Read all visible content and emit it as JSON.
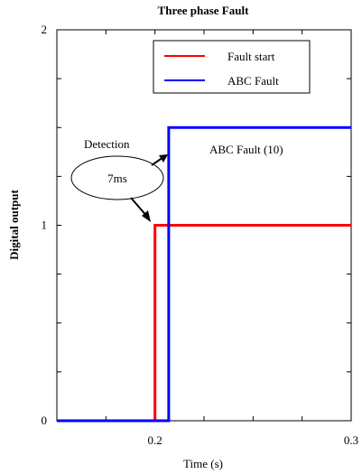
{
  "chart_data": {
    "type": "line",
    "title": "Three phase Fault",
    "xlabel": "Time (s)",
    "ylabel": "Digital output",
    "xlim": [
      0.15,
      0.3
    ],
    "ylim": [
      0,
      2
    ],
    "xticks": [
      0.2,
      0.3
    ],
    "xtick_labels": [
      "0.2",
      "0.3"
    ],
    "yticks": [
      0,
      1,
      2
    ],
    "ytick_labels": [
      "0",
      "1",
      "2"
    ],
    "grid": false,
    "legend_position": "top-right",
    "series": [
      {
        "name": "Fault start",
        "color": "#ff0000",
        "x": [
          0.15,
          0.2,
          0.2,
          0.3
        ],
        "y": [
          0,
          0,
          1,
          1
        ]
      },
      {
        "name": "ABC Fault",
        "color": "#0000ff",
        "x": [
          0.15,
          0.207,
          0.207,
          0.3
        ],
        "y": [
          0,
          0,
          1.5,
          1.5
        ]
      }
    ],
    "annotations": {
      "detection_label": "Detection",
      "delay_label": "7ms",
      "fault_label": "ABC Fault (10)"
    }
  }
}
